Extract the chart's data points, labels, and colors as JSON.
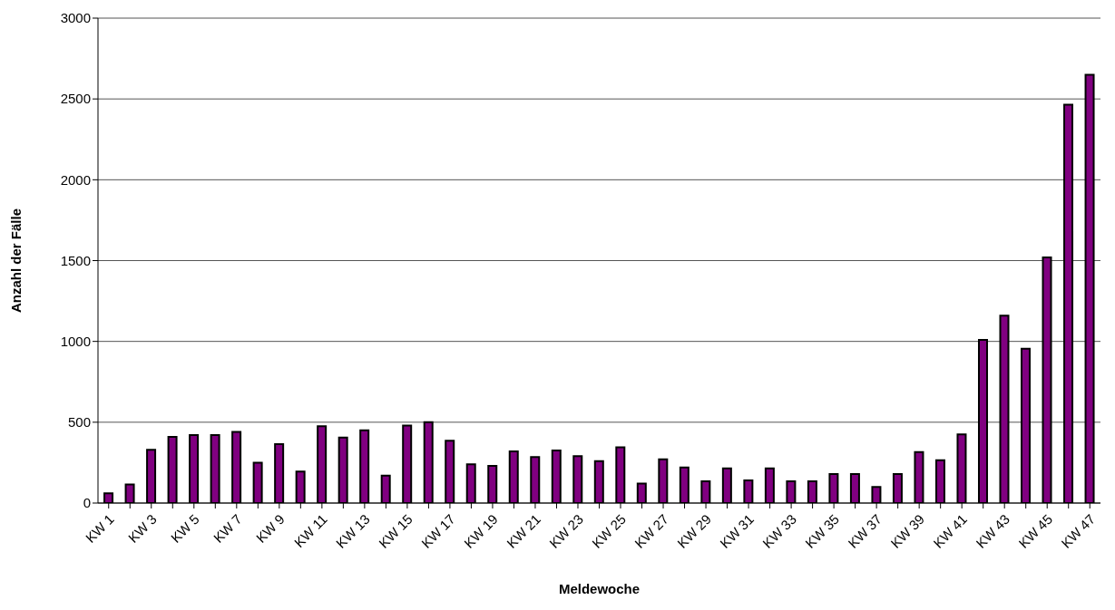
{
  "chart_data": {
    "type": "bar",
    "xlabel": "Meldewoche",
    "ylabel": "Anzahl der Fälle",
    "categories": [
      "KW 1",
      null,
      "KW 3",
      null,
      "KW 5",
      null,
      "KW 7",
      null,
      "KW 9",
      null,
      "KW 11",
      null,
      "KW 13",
      null,
      "KW 15",
      null,
      "KW 17",
      null,
      "KW 19",
      null,
      "KW 21",
      null,
      "KW 23",
      null,
      "KW 25",
      null,
      "KW 27",
      null,
      "KW 29",
      null,
      "KW 31",
      null,
      "KW 33",
      null,
      "KW 35",
      null,
      "KW 37",
      null,
      "KW 39",
      null,
      "KW 41",
      null,
      "KW 43",
      null,
      "KW 45",
      null,
      "KW 47"
    ],
    "values": [
      60,
      115,
      330,
      410,
      420,
      420,
      440,
      250,
      365,
      195,
      475,
      405,
      450,
      170,
      480,
      500,
      385,
      240,
      230,
      320,
      285,
      325,
      290,
      260,
      345,
      120,
      270,
      220,
      135,
      215,
      140,
      215,
      135,
      135,
      180,
      180,
      100,
      180,
      315,
      265,
      425,
      1010,
      1160,
      955,
      1520,
      2465,
      2650
    ],
    "color": "#800080",
    "ylim": [
      0,
      3000
    ],
    "yticks": [
      0,
      500,
      1000,
      1500,
      2000,
      2500,
      3000
    ],
    "grid": "y"
  }
}
